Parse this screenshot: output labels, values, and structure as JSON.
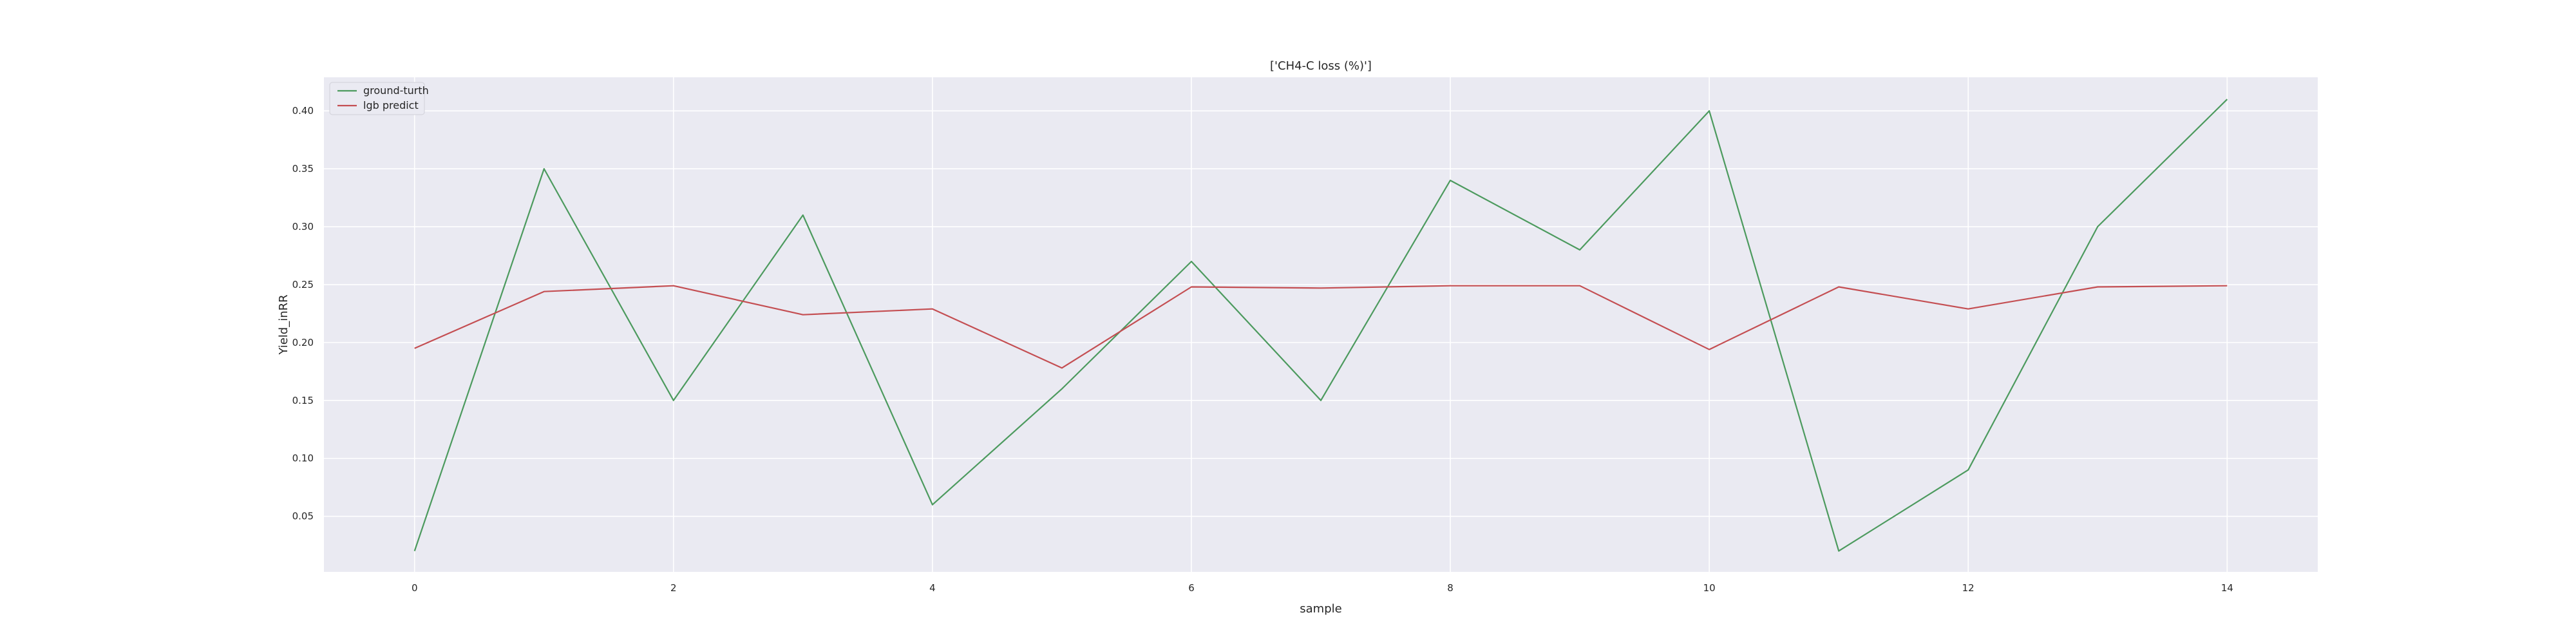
{
  "chart_data": {
    "type": "line",
    "title": "['CH4-C loss (%)']",
    "xlabel": "sample",
    "ylabel": "Yield_inRR",
    "x": [
      0,
      1,
      2,
      3,
      4,
      5,
      6,
      7,
      8,
      9,
      10,
      11,
      12,
      13,
      14
    ],
    "xticks": [
      0,
      2,
      4,
      6,
      8,
      10,
      12,
      14
    ],
    "xtick_labels": [
      "0",
      "2",
      "4",
      "6",
      "8",
      "10",
      "12",
      "14"
    ],
    "yticks": [
      0.05,
      0.1,
      0.15,
      0.2,
      0.25,
      0.3,
      0.35,
      0.4
    ],
    "ytick_labels": [
      "0.05",
      "0.10",
      "0.15",
      "0.20",
      "0.25",
      "0.30",
      "0.35",
      "0.40"
    ],
    "xlim": [
      -0.7,
      14.7
    ],
    "ylim": [
      0.002,
      0.429
    ],
    "grid": true,
    "legend_position": "top-left",
    "series": [
      {
        "name": "ground-turth",
        "color": "#4c9a5e",
        "values": [
          0.02,
          0.35,
          0.15,
          0.31,
          0.06,
          0.16,
          0.27,
          0.15,
          0.34,
          0.28,
          0.4,
          0.02,
          0.09,
          0.3,
          0.41
        ]
      },
      {
        "name": "lgb predict",
        "color": "#c44e52",
        "values": [
          0.195,
          0.244,
          0.249,
          0.224,
          0.229,
          0.178,
          0.248,
          0.247,
          0.249,
          0.249,
          0.194,
          0.248,
          0.229,
          0.248,
          0.249
        ]
      }
    ],
    "colors": {
      "plot_background": "#eaeaf2",
      "grid": "#ffffff",
      "text": "#262626"
    }
  }
}
